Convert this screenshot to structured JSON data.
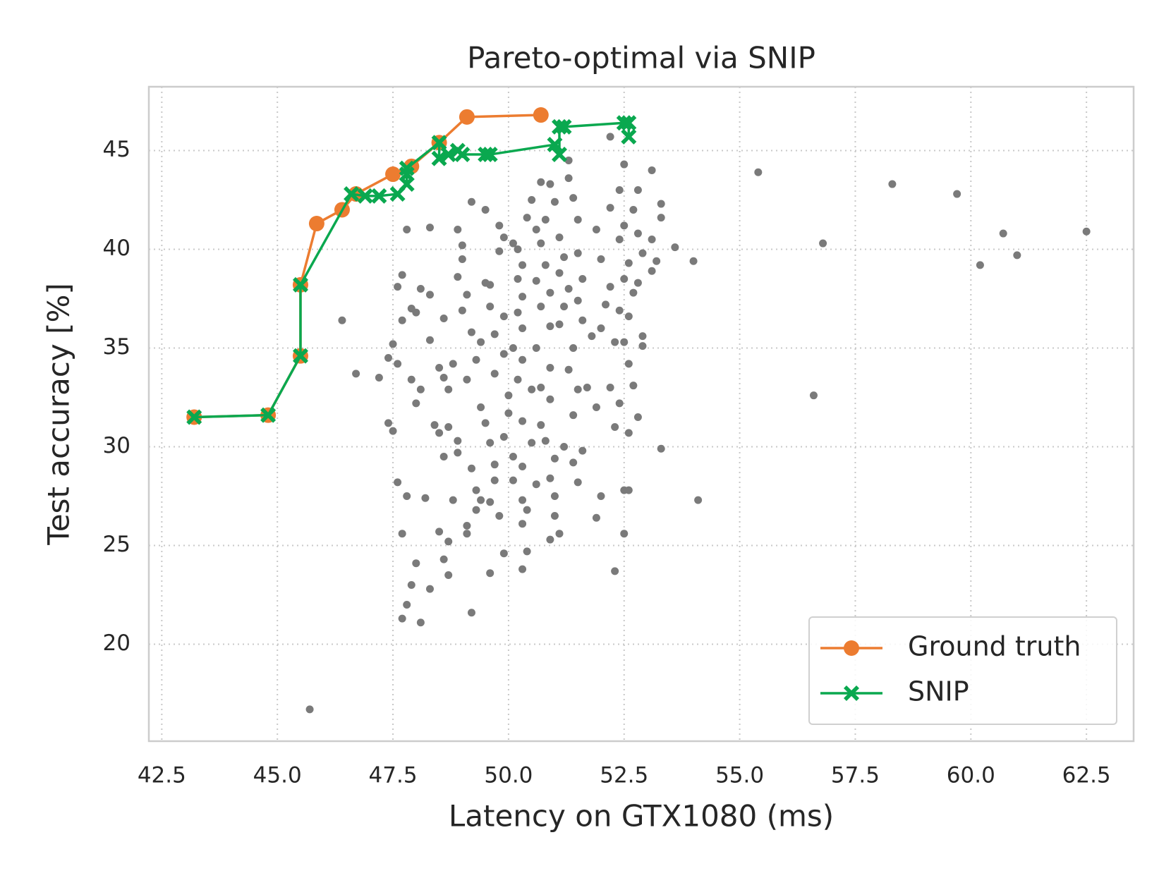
{
  "chart_data": {
    "type": "scatter",
    "title": "Pareto-optimal via SNIP",
    "xlabel": "Latency on GTX1080 (ms)",
    "ylabel": "Test accuracy [%]",
    "xlim": [
      42.22,
      63.52
    ],
    "ylim": [
      15.09,
      48.23
    ],
    "xticks": [
      42.5,
      {
        "value": 45,
        "label": "45.0"
      },
      47.5,
      {
        "value": 50,
        "label": "50.0"
      },
      52.5,
      {
        "value": 55,
        "label": "55.0"
      },
      57.5,
      {
        "value": 60,
        "label": "60.0"
      },
      62.5
    ],
    "yticks": [
      20,
      25,
      30,
      35,
      40,
      45
    ],
    "grid": true,
    "legend": "lower right",
    "points": {
      "color": "#7a7a7a",
      "x": [
        45.7,
        46.4,
        46.7,
        47.2,
        55.4,
        56.8,
        56.6,
        58.3,
        59.7,
        60.2,
        60.7,
        61.0,
        62.5,
        53.6,
        54.0,
        54.1,
        53.3,
        52.3,
        52.5,
        51.9,
        52.0,
        49.2,
        48.1,
        47.7,
        47.9,
        47.8,
        48.0,
        48.3,
        48.6,
        48.7,
        50.3,
        49.6,
        49.9,
        47.7,
        48.5,
        48.7,
        48.2,
        47.8,
        47.6,
        48.8,
        49.1,
        49.1,
        50.4,
        50.3,
        51.1,
        50.9,
        51.0,
        52.5,
        52.6,
        52.6,
        52.8,
        51.5,
        51.6,
        47.8,
        47.6,
        47.7,
        47.9,
        47.7,
        47.5,
        47.6,
        47.4,
        47.9,
        48.1,
        48.0,
        47.4,
        47.5,
        48.4,
        48.5,
        48.1,
        48.3,
        48.0,
        48.3,
        48.6,
        48.5,
        48.6,
        48.8,
        48.7,
        48.7,
        48.9,
        48.6,
        48.9,
        49.2,
        49.3,
        49.4,
        49.6,
        49.0,
        49.0,
        48.9,
        49.1,
        49.0,
        49.2,
        49.4,
        49.3,
        49.1,
        49.4,
        49.5,
        49.6,
        49.7,
        49.7,
        49.3,
        48.9,
        49.2,
        49.5,
        49.8,
        49.9,
        50.1,
        49.8,
        49.6,
        49.6,
        49.9,
        49.7,
        49.9,
        49.7,
        50.0,
        50.0,
        49.9,
        50.1,
        50.1,
        50.3,
        49.8,
        50.2,
        50.3,
        50.2,
        50.3,
        50.2,
        50.3,
        50.1,
        50.3,
        50.2,
        50.5,
        50.3,
        50.5,
        50.3,
        50.6,
        50.4,
        50.6,
        50.4,
        50.5,
        50.7,
        50.9,
        51.0,
        50.8,
        50.7,
        50.8,
        50.6,
        50.9,
        50.7,
        50.9,
        50.6,
        50.9,
        50.7,
        50.9,
        50.7,
        50.8,
        51.0,
        50.9,
        51.0,
        51.1,
        51.2,
        51.1,
        51.3,
        51.2,
        51.1,
        51.4,
        51.3,
        51.5,
        51.4,
        51.2,
        51.4,
        51.5,
        51.4,
        51.3,
        51.5,
        51.6,
        51.5,
        51.6,
        51.8,
        51.7,
        51.9,
        51.9,
        52.0,
        52.2,
        52.1,
        52.0,
        52.3,
        52.2,
        52.4,
        52.3,
        52.2,
        52.4,
        52.5,
        52.5,
        52.4,
        52.6,
        52.5,
        52.7,
        52.6,
        52.5,
        52.6,
        52.7,
        52.8,
        52.7,
        52.8,
        52.9,
        52.8,
        52.9,
        52.9,
        52.4,
        53.1,
        53.1,
        53.2,
        53.3,
        53.3,
        53.1,
        52.2,
        51.3,
        48.3,
        49.5
      ],
      "y": [
        16.7,
        36.4,
        33.7,
        33.5,
        43.9,
        40.3,
        32.6,
        43.3,
        42.8,
        39.2,
        40.8,
        39.7,
        40.9,
        40.1,
        39.4,
        27.3,
        29.9,
        23.7,
        25.6,
        26.4,
        27.5,
        21.6,
        21.1,
        21.3,
        23.0,
        22.0,
        24.1,
        22.8,
        24.3,
        23.5,
        23.8,
        23.6,
        24.6,
        25.6,
        25.7,
        25.2,
        27.4,
        27.5,
        28.2,
        27.3,
        26.0,
        25.6,
        24.7,
        26.1,
        25.6,
        25.3,
        26.5,
        27.8,
        27.8,
        30.7,
        31.5,
        28.2,
        29.8,
        41.0,
        38.1,
        38.7,
        37.0,
        36.4,
        35.2,
        34.2,
        34.5,
        33.4,
        32.9,
        32.2,
        31.2,
        30.8,
        31.1,
        30.7,
        38.0,
        37.7,
        36.8,
        35.4,
        36.5,
        34.0,
        33.5,
        34.2,
        32.9,
        31.0,
        30.3,
        29.5,
        29.7,
        28.9,
        27.8,
        27.3,
        27.2,
        40.2,
        39.5,
        38.6,
        37.7,
        36.9,
        35.8,
        35.3,
        34.4,
        33.4,
        32.0,
        31.2,
        30.2,
        29.1,
        28.3,
        26.8,
        41.0,
        42.4,
        42.0,
        41.2,
        40.6,
        40.3,
        39.9,
        38.2,
        37.1,
        36.6,
        35.7,
        34.7,
        33.7,
        32.6,
        31.7,
        30.5,
        29.5,
        28.3,
        27.3,
        26.5,
        40.0,
        39.2,
        38.5,
        37.6,
        36.8,
        36.0,
        35.0,
        34.4,
        33.4,
        32.9,
        31.3,
        30.2,
        29.0,
        28.1,
        26.8,
        41.0,
        41.6,
        42.5,
        43.4,
        43.3,
        42.4,
        41.5,
        40.3,
        39.2,
        38.4,
        37.8,
        37.1,
        36.1,
        35.0,
        34.0,
        33.0,
        32.4,
        31.1,
        30.3,
        29.4,
        28.4,
        27.5,
        40.6,
        39.6,
        38.8,
        38.0,
        37.1,
        36.2,
        35.0,
        33.9,
        32.9,
        31.6,
        30.0,
        29.2,
        41.5,
        42.6,
        43.6,
        39.8,
        38.5,
        37.4,
        36.4,
        35.6,
        33.0,
        32.0,
        41.0,
        39.5,
        38.1,
        37.2,
        36.0,
        35.3,
        33.0,
        32.2,
        31.0,
        42.1,
        43.0,
        44.3,
        41.2,
        40.5,
        39.3,
        38.5,
        37.8,
        36.6,
        35.3,
        34.2,
        33.1,
        43.0,
        42.0,
        40.8,
        39.8,
        38.3,
        35.6,
        35.1,
        36.9,
        44.0,
        40.5,
        39.4,
        42.3,
        41.6,
        38.9,
        45.7,
        44.5,
        41.1,
        38.3
      ]
    },
    "series": [
      {
        "name": "Ground truth",
        "color": "#ec7c30",
        "marker": "circle",
        "x": [
          43.2,
          44.8,
          45.5,
          45.5,
          45.85,
          46.4,
          46.7,
          47.5,
          47.9,
          48.5,
          49.1,
          50.7
        ],
        "y": [
          31.5,
          31.6,
          34.6,
          38.2,
          41.3,
          42.0,
          42.8,
          43.8,
          44.2,
          45.4,
          46.7,
          46.8
        ]
      },
      {
        "name": "SNIP",
        "color": "#0aa84f",
        "marker": "x",
        "x": [
          43.2,
          44.8,
          45.5,
          45.5,
          46.6,
          46.9,
          47.2,
          47.6,
          47.8,
          47.8,
          47.8,
          48.5,
          48.5,
          48.7,
          48.9,
          49.0,
          49.5,
          49.6,
          51.0,
          51.1,
          51.1,
          51.2,
          52.5,
          52.6,
          52.6
        ],
        "y": [
          31.5,
          31.6,
          34.6,
          38.2,
          42.8,
          42.7,
          42.7,
          42.8,
          43.3,
          43.8,
          44.1,
          45.4,
          44.6,
          44.8,
          45.0,
          44.8,
          44.8,
          44.8,
          45.3,
          44.8,
          46.2,
          46.2,
          46.4,
          46.4,
          45.7
        ]
      }
    ]
  }
}
